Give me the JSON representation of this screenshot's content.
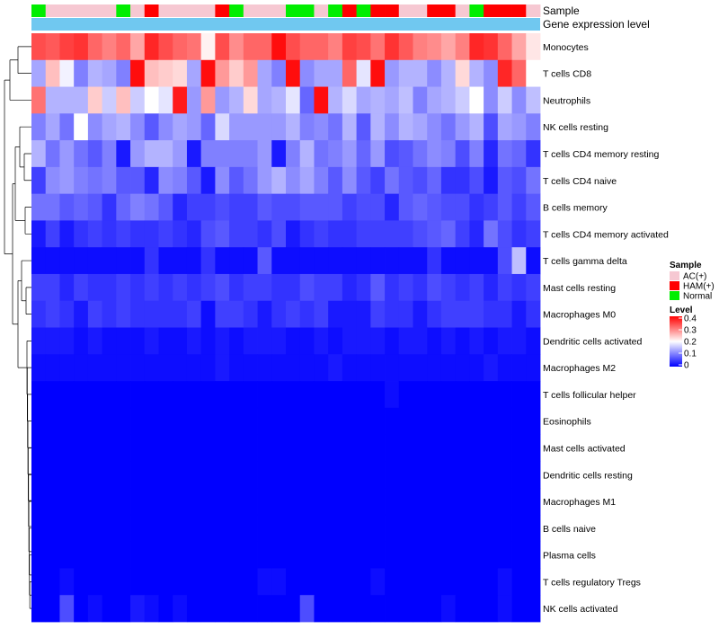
{
  "chart_data": {
    "type": "heatmap",
    "title": "",
    "annotation_rows": [
      "Sample",
      "Gene expression level"
    ],
    "row_labels": [
      "Monocytes",
      "T cells CD8",
      "Neutrophils",
      "NK cells resting",
      "T cells CD4 memory resting",
      "T cells CD4 naive",
      "B cells memory",
      "T cells CD4 memory activated",
      "T cells gamma delta",
      "Mast cells resting",
      "Macrophages M0",
      "Dendritic cells activated",
      "Macrophages M2",
      "T cells follicular helper",
      "Eosinophils",
      "Mast cells activated",
      "Dendritic cells resting",
      "Macrophages M1",
      "B cells naive",
      "Plasma cells",
      "T cells regulatory  Tregs",
      "NK cells activated"
    ],
    "sample_groups": [
      "Normal",
      "AC(+)",
      "AC(+)",
      "AC(+)",
      "AC(+)",
      "AC(+)",
      "Normal",
      "AC(+)",
      "HAM(+)",
      "AC(+)",
      "AC(+)",
      "AC(+)",
      "AC(+)",
      "HAM(+)",
      "Normal",
      "AC(+)",
      "AC(+)",
      "AC(+)",
      "Normal",
      "Normal",
      "AC(+)",
      "Normal",
      "HAM(+)",
      "Normal",
      "HAM(+)",
      "HAM(+)",
      "AC(+)",
      "AC(+)",
      "HAM(+)",
      "HAM(+)",
      "AC(+)",
      "Normal",
      "HAM(+)",
      "HAM(+)",
      "HAM(+)",
      "AC(+)"
    ],
    "values": [
      [
        0.34,
        0.33,
        0.35,
        0.36,
        0.32,
        0.3,
        0.32,
        0.27,
        0.37,
        0.34,
        0.32,
        0.31,
        0.21,
        0.34,
        0.29,
        0.32,
        0.32,
        0.39,
        0.34,
        0.32,
        0.32,
        0.3,
        0.35,
        0.34,
        0.31,
        0.36,
        0.33,
        0.3,
        0.29,
        0.27,
        0.3,
        0.37,
        0.36,
        0.32,
        0.27,
        0.22
      ],
      [
        0.13,
        0.25,
        0.19,
        0.1,
        0.14,
        0.13,
        0.1,
        0.39,
        0.25,
        0.24,
        0.23,
        0.13,
        0.39,
        0.28,
        0.24,
        0.28,
        0.13,
        0.1,
        0.39,
        0.11,
        0.13,
        0.13,
        0.32,
        0.18,
        0.39,
        0.12,
        0.14,
        0.14,
        0.11,
        0.14,
        0.23,
        0.14,
        0.11,
        0.37,
        0.32,
        0.2
      ],
      [
        0.31,
        0.14,
        0.14,
        0.14,
        0.24,
        0.16,
        0.25,
        0.16,
        0.2,
        0.18,
        0.38,
        0.12,
        0.28,
        0.12,
        0.14,
        0.23,
        0.13,
        0.14,
        0.18,
        0.08,
        0.39,
        0.14,
        0.17,
        0.13,
        0.14,
        0.13,
        0.15,
        0.1,
        0.13,
        0.14,
        0.16,
        0.2,
        0.11,
        0.16,
        0.11,
        0.15
      ],
      [
        0.1,
        0.13,
        0.09,
        0.2,
        0.11,
        0.13,
        0.14,
        0.11,
        0.07,
        0.11,
        0.13,
        0.12,
        0.08,
        0.17,
        0.12,
        0.12,
        0.12,
        0.12,
        0.14,
        0.1,
        0.11,
        0.09,
        0.14,
        0.07,
        0.14,
        0.11,
        0.14,
        0.13,
        0.11,
        0.09,
        0.12,
        0.14,
        0.06,
        0.13,
        0.12,
        0.1
      ],
      [
        0.14,
        0.09,
        0.12,
        0.09,
        0.07,
        0.1,
        0.02,
        0.12,
        0.14,
        0.14,
        0.12,
        0.02,
        0.1,
        0.1,
        0.1,
        0.1,
        0.12,
        0.02,
        0.1,
        0.14,
        0.09,
        0.1,
        0.12,
        0.08,
        0.12,
        0.06,
        0.07,
        0.09,
        0.11,
        0.1,
        0.06,
        0.1,
        0.03,
        0.09,
        0.08,
        0.04
      ],
      [
        0.05,
        0.11,
        0.12,
        0.1,
        0.09,
        0.1,
        0.07,
        0.07,
        0.03,
        0.11,
        0.1,
        0.07,
        0.02,
        0.11,
        0.07,
        0.09,
        0.12,
        0.14,
        0.11,
        0.13,
        0.1,
        0.07,
        0.11,
        0.07,
        0.05,
        0.09,
        0.07,
        0.06,
        0.08,
        0.04,
        0.04,
        0.06,
        0.02,
        0.07,
        0.06,
        0.09
      ],
      [
        0.09,
        0.09,
        0.07,
        0.08,
        0.07,
        0.04,
        0.08,
        0.1,
        0.09,
        0.07,
        0.03,
        0.05,
        0.05,
        0.06,
        0.05,
        0.05,
        0.07,
        0.06,
        0.06,
        0.07,
        0.07,
        0.07,
        0.05,
        0.06,
        0.06,
        0.03,
        0.07,
        0.08,
        0.07,
        0.06,
        0.06,
        0.04,
        0.05,
        0.07,
        0.05,
        0.07
      ],
      [
        0.02,
        0.05,
        0.02,
        0.04,
        0.05,
        0.04,
        0.05,
        0.04,
        0.04,
        0.05,
        0.04,
        0.03,
        0.06,
        0.07,
        0.05,
        0.05,
        0.04,
        0.06,
        0.02,
        0.04,
        0.05,
        0.04,
        0.04,
        0.05,
        0.05,
        0.05,
        0.05,
        0.06,
        0.07,
        0.08,
        0.05,
        0.03,
        0.09,
        0.06,
        0.04,
        0.05
      ],
      [
        0.01,
        0.01,
        0.01,
        0.01,
        0.01,
        0.01,
        0.01,
        0.01,
        0.04,
        0.01,
        0.01,
        0.01,
        0.04,
        0.01,
        0.01,
        0.01,
        0.07,
        0.01,
        0.01,
        0.01,
        0.01,
        0.01,
        0.01,
        0.01,
        0.01,
        0.01,
        0.01,
        0.01,
        0.04,
        0.01,
        0.01,
        0.01,
        0.01,
        0.06,
        0.15,
        0.01
      ],
      [
        0.05,
        0.05,
        0.03,
        0.05,
        0.04,
        0.04,
        0.05,
        0.04,
        0.05,
        0.04,
        0.05,
        0.04,
        0.05,
        0.06,
        0.04,
        0.05,
        0.05,
        0.04,
        0.04,
        0.06,
        0.05,
        0.05,
        0.03,
        0.04,
        0.07,
        0.04,
        0.05,
        0.04,
        0.06,
        0.05,
        0.04,
        0.05,
        0.03,
        0.05,
        0.04,
        0.05
      ],
      [
        0.04,
        0.05,
        0.04,
        0.02,
        0.05,
        0.04,
        0.05,
        0.04,
        0.04,
        0.04,
        0.04,
        0.05,
        0.01,
        0.05,
        0.05,
        0.04,
        0.02,
        0.04,
        0.05,
        0.04,
        0.05,
        0.02,
        0.02,
        0.02,
        0.05,
        0.04,
        0.04,
        0.02,
        0.04,
        0.05,
        0.05,
        0.05,
        0.04,
        0.04,
        0.02,
        0.04
      ],
      [
        0.02,
        0.02,
        0.02,
        0.01,
        0.02,
        0.01,
        0.01,
        0.01,
        0.02,
        0.01,
        0.01,
        0.02,
        0.01,
        0.02,
        0.01,
        0.02,
        0.02,
        0.02,
        0.01,
        0.01,
        0.02,
        0.01,
        0.02,
        0.02,
        0.02,
        0.01,
        0.02,
        0.02,
        0.01,
        0.02,
        0.01,
        0.02,
        0.01,
        0.02,
        0.02,
        0.01
      ],
      [
        0.01,
        0.01,
        0.01,
        0.01,
        0.01,
        0.01,
        0.01,
        0.01,
        0.01,
        0.01,
        0.01,
        0.01,
        0.01,
        0.02,
        0.01,
        0.01,
        0.01,
        0.01,
        0.01,
        0.01,
        0.01,
        0.02,
        0.01,
        0.01,
        0.01,
        0.01,
        0.01,
        0.01,
        0.01,
        0.01,
        0.01,
        0.01,
        0.02,
        0.01,
        0.01,
        0.01
      ],
      [
        0,
        0,
        0,
        0,
        0,
        0,
        0,
        0,
        0,
        0,
        0,
        0,
        0,
        0,
        0,
        0,
        0,
        0,
        0,
        0,
        0,
        0,
        0,
        0,
        0,
        0.01,
        0,
        0,
        0,
        0,
        0,
        0,
        0,
        0,
        0,
        0
      ],
      [
        0,
        0,
        0,
        0,
        0,
        0,
        0,
        0,
        0,
        0,
        0,
        0,
        0,
        0,
        0,
        0,
        0,
        0,
        0,
        0,
        0,
        0,
        0,
        0,
        0,
        0,
        0,
        0,
        0,
        0,
        0,
        0,
        0,
        0,
        0,
        0
      ],
      [
        0,
        0,
        0,
        0,
        0,
        0,
        0,
        0,
        0,
        0,
        0,
        0,
        0,
        0,
        0,
        0,
        0,
        0,
        0,
        0,
        0,
        0,
        0,
        0,
        0,
        0,
        0,
        0,
        0,
        0,
        0,
        0,
        0,
        0,
        0,
        0
      ],
      [
        0,
        0,
        0,
        0,
        0,
        0,
        0,
        0,
        0,
        0,
        0,
        0,
        0,
        0,
        0,
        0,
        0,
        0,
        0,
        0,
        0,
        0,
        0,
        0,
        0,
        0,
        0,
        0,
        0,
        0,
        0,
        0,
        0,
        0,
        0,
        0
      ],
      [
        0,
        0,
        0,
        0,
        0,
        0,
        0,
        0,
        0,
        0,
        0,
        0,
        0,
        0,
        0,
        0,
        0,
        0,
        0,
        0,
        0,
        0,
        0,
        0,
        0,
        0,
        0,
        0,
        0,
        0,
        0,
        0,
        0,
        0,
        0,
        0
      ],
      [
        0,
        0,
        0,
        0,
        0,
        0,
        0,
        0,
        0,
        0,
        0,
        0,
        0,
        0,
        0,
        0,
        0,
        0,
        0,
        0,
        0,
        0,
        0,
        0,
        0,
        0,
        0,
        0,
        0,
        0,
        0,
        0,
        0,
        0,
        0,
        0
      ],
      [
        0,
        0,
        0,
        0,
        0,
        0,
        0,
        0,
        0,
        0,
        0,
        0,
        0,
        0,
        0,
        0,
        0,
        0,
        0,
        0,
        0,
        0,
        0,
        0,
        0,
        0,
        0,
        0,
        0,
        0,
        0,
        0,
        0,
        0,
        0,
        0
      ],
      [
        0,
        0,
        0.01,
        0,
        0,
        0,
        0,
        0,
        0,
        0,
        0,
        0,
        0,
        0,
        0,
        0,
        0.01,
        0.01,
        0,
        0,
        0,
        0,
        0,
        0,
        0.01,
        0,
        0,
        0,
        0,
        0,
        0,
        0,
        0,
        0.01,
        0,
        0
      ],
      [
        0,
        0,
        0.06,
        0,
        0.01,
        0,
        0,
        0.02,
        0.01,
        0,
        0.01,
        0,
        0,
        0,
        0,
        0,
        0,
        0,
        0,
        0.06,
        0,
        0,
        0,
        0,
        0,
        0,
        0,
        0,
        0,
        0.01,
        0,
        0,
        0,
        0.01,
        0,
        0
      ]
    ],
    "expression_level_color": "#70c8f0",
    "legend": {
      "sample_title": "Sample",
      "sample_entries": [
        {
          "label": "AC(+)",
          "color": "#f6c8d2"
        },
        {
          "label": "HAM(+)",
          "color": "#ff0000"
        },
        {
          "label": "Normal",
          "color": "#00ee00"
        }
      ],
      "level_title": "Level",
      "level_ticks": [
        "0.4",
        "0.3",
        "0.2",
        "0.1",
        "0"
      ],
      "level_range": [
        0,
        0.4
      ],
      "placement": "right"
    },
    "colors": {
      "low": "#0000ff",
      "mid": "#ffffff",
      "high": "#ff0000"
    }
  }
}
